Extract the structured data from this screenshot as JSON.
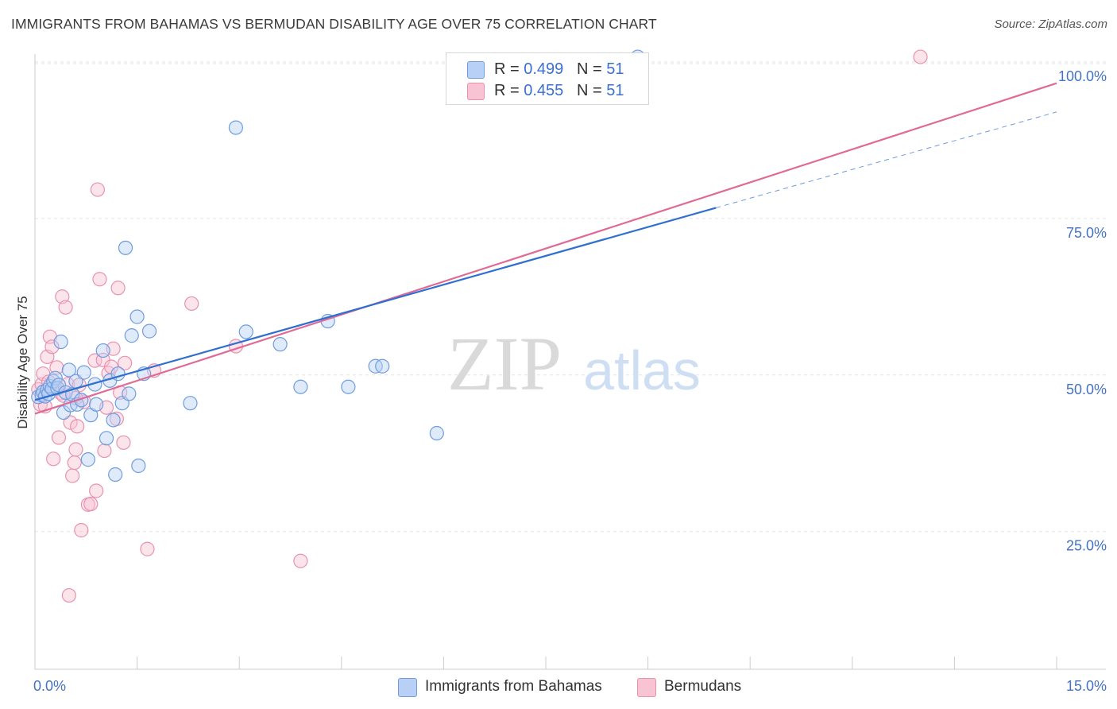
{
  "header": {
    "title": "IMMIGRANTS FROM BAHAMAS VS BERMUDAN DISABILITY AGE OVER 75 CORRELATION CHART",
    "source": "Source: ZipAtlas.com"
  },
  "watermark": {
    "zip": "ZIP",
    "atlas": "atlas"
  },
  "legend": {
    "rows": [
      {
        "r_label": "R = ",
        "r_value": "0.499",
        "n_label": "N = ",
        "n_value": "51"
      },
      {
        "r_label": "R = ",
        "r_value": "0.455",
        "n_label": "N = ",
        "n_value": "51"
      }
    ]
  },
  "colors": {
    "blue_fill": "#b8d0f5",
    "blue_stroke": "#6f9de0",
    "blue_line": "#2f6fd0",
    "pink_fill": "#f8c3d3",
    "pink_stroke": "#e892b0",
    "pink_line": "#e06a95"
  },
  "chart_data": {
    "type": "scatter",
    "title": "IMMIGRANTS FROM BAHAMAS VS BERMUDAN DISABILITY AGE OVER 75 CORRELATION CHART",
    "xlabel": "",
    "ylabel": "Disability Age Over 75",
    "xlim": [
      0,
      15
    ],
    "ylim": [
      3,
      101
    ],
    "x_tick_labels": [
      "0.0%",
      "15.0%"
    ],
    "y_ticks": [
      25,
      50,
      75,
      100
    ],
    "y_tick_labels": [
      "25.0%",
      "50.0%",
      "75.0%",
      "100.0%"
    ],
    "grid": true,
    "legend_position": "top-center",
    "series": [
      {
        "name": "Immigrants from Bahamas",
        "color": "#6f9de0",
        "points": [
          [
            0.05,
            46.5
          ],
          [
            0.1,
            46.8
          ],
          [
            0.12,
            47.3
          ],
          [
            0.15,
            46.6
          ],
          [
            0.18,
            47.6
          ],
          [
            0.2,
            47.0
          ],
          [
            0.22,
            48.2
          ],
          [
            0.25,
            47.8
          ],
          [
            0.27,
            49.0
          ],
          [
            0.3,
            49.5
          ],
          [
            0.33,
            47.9
          ],
          [
            0.35,
            48.4
          ],
          [
            0.38,
            55.3
          ],
          [
            0.42,
            44.0
          ],
          [
            0.45,
            47.2
          ],
          [
            0.5,
            50.8
          ],
          [
            0.52,
            45.2
          ],
          [
            0.55,
            46.9
          ],
          [
            0.6,
            49.0
          ],
          [
            0.62,
            45.3
          ],
          [
            0.68,
            46.0
          ],
          [
            0.72,
            50.4
          ],
          [
            0.78,
            36.5
          ],
          [
            0.82,
            43.6
          ],
          [
            0.88,
            48.5
          ],
          [
            0.9,
            45.3
          ],
          [
            1.0,
            53.9
          ],
          [
            1.05,
            39.9
          ],
          [
            1.1,
            49.1
          ],
          [
            1.15,
            42.8
          ],
          [
            1.18,
            34.1
          ],
          [
            1.22,
            50.2
          ],
          [
            1.28,
            45.5
          ],
          [
            1.33,
            70.3
          ],
          [
            1.38,
            47.0
          ],
          [
            1.42,
            56.3
          ],
          [
            1.5,
            59.3
          ],
          [
            1.52,
            35.5
          ],
          [
            1.6,
            50.2
          ],
          [
            1.68,
            57.0
          ],
          [
            2.28,
            45.5
          ],
          [
            2.95,
            89.5
          ],
          [
            3.1,
            56.9
          ],
          [
            3.6,
            54.9
          ],
          [
            3.9,
            48.1
          ],
          [
            4.3,
            58.6
          ],
          [
            4.6,
            48.1
          ],
          [
            5.0,
            51.4
          ],
          [
            5.1,
            51.4
          ],
          [
            5.9,
            40.7
          ],
          [
            8.85,
            100.8
          ]
        ]
      },
      {
        "name": "Bermudans",
        "color": "#e892b0",
        "points": [
          [
            0.05,
            47.7
          ],
          [
            0.08,
            45.3
          ],
          [
            0.1,
            48.5
          ],
          [
            0.12,
            50.2
          ],
          [
            0.15,
            45.0
          ],
          [
            0.18,
            52.9
          ],
          [
            0.2,
            48.9
          ],
          [
            0.22,
            56.1
          ],
          [
            0.25,
            54.5
          ],
          [
            0.27,
            36.6
          ],
          [
            0.3,
            47.8
          ],
          [
            0.32,
            51.2
          ],
          [
            0.35,
            40.0
          ],
          [
            0.38,
            47.1
          ],
          [
            0.4,
            62.5
          ],
          [
            0.42,
            46.7
          ],
          [
            0.45,
            60.8
          ],
          [
            0.48,
            48.5
          ],
          [
            0.5,
            14.8
          ],
          [
            0.52,
            42.4
          ],
          [
            0.55,
            33.9
          ],
          [
            0.58,
            36.0
          ],
          [
            0.6,
            38.1
          ],
          [
            0.62,
            41.8
          ],
          [
            0.65,
            48.4
          ],
          [
            0.68,
            25.2
          ],
          [
            0.72,
            45.7
          ],
          [
            0.78,
            29.3
          ],
          [
            0.82,
            29.4
          ],
          [
            0.88,
            52.3
          ],
          [
            0.9,
            31.5
          ],
          [
            0.92,
            79.6
          ],
          [
            0.95,
            65.3
          ],
          [
            1.0,
            52.4
          ],
          [
            1.02,
            37.9
          ],
          [
            1.05,
            44.8
          ],
          [
            1.08,
            50.3
          ],
          [
            1.12,
            51.3
          ],
          [
            1.15,
            54.2
          ],
          [
            1.2,
            43.0
          ],
          [
            1.22,
            63.9
          ],
          [
            1.25,
            47.2
          ],
          [
            1.3,
            39.2
          ],
          [
            1.32,
            51.9
          ],
          [
            1.65,
            22.2
          ],
          [
            1.75,
            50.7
          ],
          [
            2.3,
            61.4
          ],
          [
            2.95,
            54.6
          ],
          [
            3.9,
            20.3
          ],
          [
            13.0,
            100.8
          ],
          [
            0.6,
            46.3
          ]
        ]
      }
    ],
    "trend_lines": [
      {
        "series": "Immigrants from Bahamas",
        "x_start": 0,
        "y_start": 46.0,
        "x_end": 10.0,
        "y_end": 76.7,
        "dashed_x_end": 15.0,
        "dashed_y_end": 92.0
      },
      {
        "series": "Bermudans",
        "x_start": 0,
        "y_start": 43.8,
        "x_end": 15.0,
        "y_end": 96.6
      }
    ]
  }
}
